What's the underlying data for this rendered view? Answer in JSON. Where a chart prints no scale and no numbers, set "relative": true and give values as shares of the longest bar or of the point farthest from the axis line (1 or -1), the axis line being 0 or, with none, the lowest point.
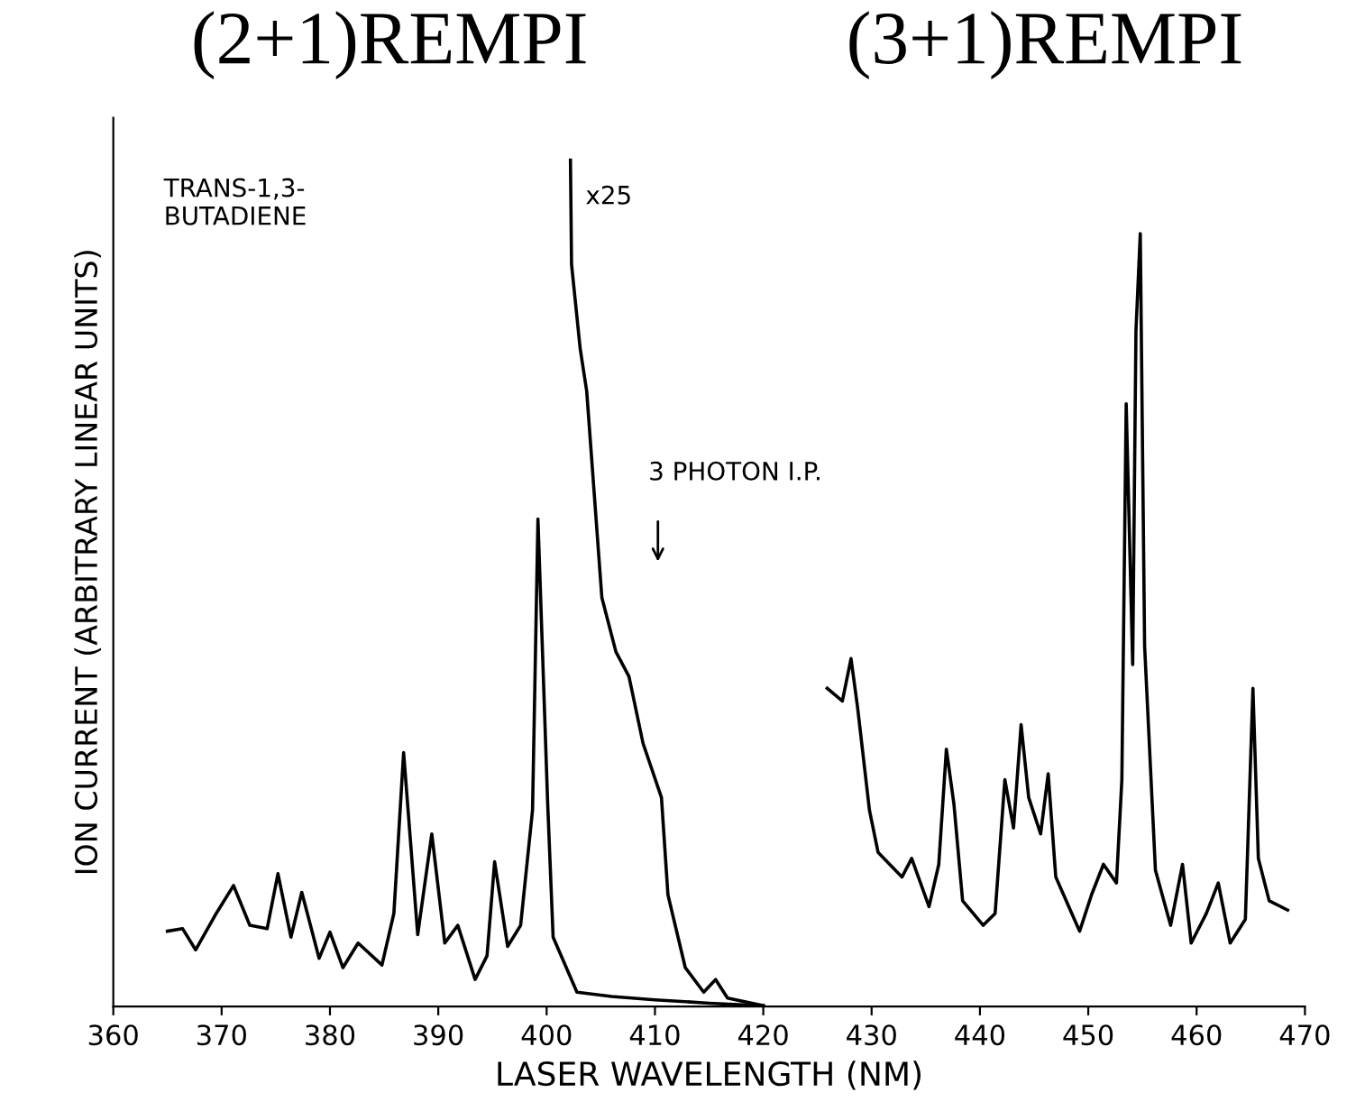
{
  "chart_data": {
    "type": "line",
    "relative": true,
    "xlabel": "LASER WAVELENGTH (NM)",
    "ylabel": "ION CURRENT (ARBITRARY LINEAR UNITS)",
    "xlim": [
      360,
      470
    ],
    "xticks": [
      360,
      370,
      380,
      390,
      400,
      410,
      420,
      430,
      440,
      450,
      460,
      470
    ],
    "grid": false,
    "legend": false,
    "marker": "none",
    "line_style": "solid",
    "annotations": [
      "(2+1)REMPI",
      "(3+1)REMPI",
      "TRANS-1,3-\nBUTADIENE",
      "3 PHOTON I.P."
    ],
    "series": [
      {
        "color": "#000000",
        "x": [
          365.0,
          366.4,
          367.6,
          369.5,
          371.1,
          372.6,
          374.2,
          375.2,
          376.4,
          377.4,
          379.0,
          380.0,
          381.2,
          382.6,
          384.8,
          385.9,
          386.8,
          388.1,
          389.4,
          390.6,
          391.8,
          393.4,
          394.5,
          395.2,
          396.4,
          397.6,
          398.7,
          399.2,
          400.1,
          400.6,
          402.8,
          406.0,
          410.0,
          415.0,
          420.0,
          423.0,
          425.9,
          427.3,
          428.1,
          428.7,
          429.8,
          430.6,
          432.8,
          433.7,
          435.3,
          436.2,
          436.9,
          437.6,
          438.4,
          440.3,
          441.4,
          442.3,
          443.1,
          443.8,
          444.5,
          445.6,
          446.3,
          447.0,
          449.2,
          450.3,
          451.4,
          452.6,
          453.1,
          453.5,
          454.1,
          454.4,
          454.8,
          455.2,
          456.2,
          457.6,
          458.7,
          459.5,
          460.9,
          462.0,
          463.1,
          464.5,
          465.2,
          465.7,
          466.7,
          468.4
        ],
        "values": [
          0.089,
          0.092,
          0.067,
          0.11,
          0.143,
          0.096,
          0.092,
          0.157,
          0.082,
          0.135,
          0.057,
          0.088,
          0.046,
          0.075,
          0.049,
          0.11,
          0.3,
          0.085,
          0.204,
          0.075,
          0.096,
          0.032,
          0.06,
          0.171,
          0.071,
          0.096,
          0.232,
          0.576,
          0.239,
          0.082,
          0.017,
          0.012,
          0.008,
          0.004,
          0.001,
          null,
          0.376,
          0.361,
          0.411,
          0.354,
          0.232,
          0.182,
          0.153,
          0.175,
          0.118,
          0.168,
          0.304,
          0.239,
          0.125,
          0.096,
          0.11,
          0.268,
          0.211,
          0.333,
          0.247,
          0.204,
          0.275,
          0.153,
          0.089,
          0.132,
          0.168,
          0.146,
          0.268,
          0.712,
          0.404,
          0.798,
          0.913,
          0.426,
          0.161,
          0.096,
          0.168,
          0.075,
          0.11,
          0.146,
          0.075,
          0.103,
          0.376,
          0.175,
          0.125,
          0.114
        ]
      },
      {
        "name": "x25",
        "color": "#000000",
        "x": [
          402.2,
          402.3,
          403.1,
          403.7,
          405.1,
          406.4,
          407.6,
          408.9,
          410.6,
          411.2,
          412.8,
          414.5,
          415.6,
          416.7,
          420.0
        ],
        "values": [
          1.0,
          0.877,
          0.777,
          0.727,
          0.483,
          0.419,
          0.39,
          0.311,
          0.247,
          0.132,
          0.046,
          0.017,
          0.032,
          0.01,
          0.001
        ]
      }
    ]
  }
}
